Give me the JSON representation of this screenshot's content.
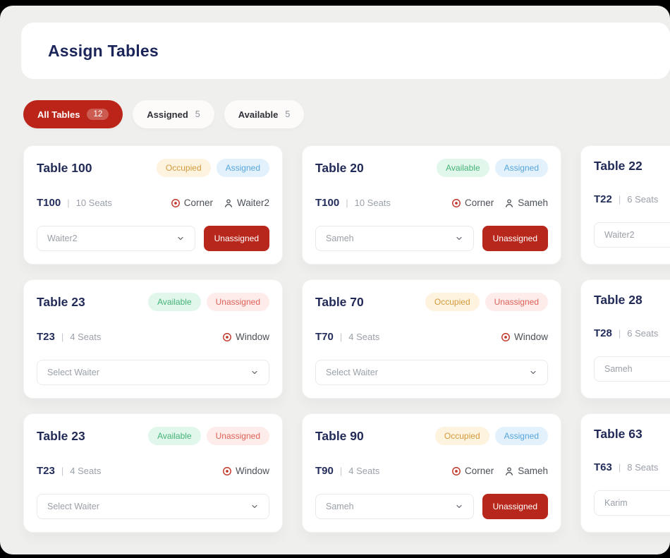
{
  "header": {
    "title": "Assign Tables"
  },
  "filters": [
    {
      "label": "All Tables",
      "count": "12",
      "active": true
    },
    {
      "label": "Assigned",
      "count": "5",
      "active": false
    },
    {
      "label": "Available",
      "count": "5",
      "active": false
    }
  ],
  "misc": {
    "separator": "|"
  },
  "colors": {
    "primary_red": "#bb2418",
    "navy": "#1b2559",
    "occupied_badge": "#d39a3c",
    "available_badge": "#43b377",
    "assigned_badge": "#57a5da",
    "unassigned_badge": "#df6058",
    "page_background": "#eff0ee"
  },
  "cards": [
    {
      "title": "Table 100",
      "badges": [
        {
          "label": "Occupied",
          "type": "occupied"
        },
        {
          "label": "Assigned",
          "type": "assigned"
        }
      ],
      "code": "T100",
      "seats": "10 Seats",
      "location": "Corner",
      "waiter": "Waiter2",
      "select_value": "Waiter2",
      "unassign_label": "Unassigned"
    },
    {
      "title": "Table 20",
      "badges": [
        {
          "label": "Available",
          "type": "available"
        },
        {
          "label": "Assigned",
          "type": "assigned"
        }
      ],
      "code": "T100",
      "seats": "10 Seats",
      "location": "Corner",
      "waiter": "Sameh",
      "select_value": "Sameh",
      "unassign_label": "Unassigned"
    },
    {
      "title": "Table 22",
      "badges": [],
      "code": "T22",
      "seats": "6 Seats",
      "location": null,
      "waiter": null,
      "select_value": "Waiter2",
      "unassign_label": null
    },
    {
      "title": "Table 23",
      "badges": [
        {
          "label": "Available",
          "type": "available"
        },
        {
          "label": "Unassigned",
          "type": "unassigned"
        }
      ],
      "code": "T23",
      "seats": "4 Seats",
      "location": "Window",
      "waiter": null,
      "select_value": "Select Waiter",
      "unassign_label": null
    },
    {
      "title": "Table 70",
      "badges": [
        {
          "label": "Occupied",
          "type": "occupied"
        },
        {
          "label": "Unassigned",
          "type": "unassigned"
        }
      ],
      "code": "T70",
      "seats": "4 Seats",
      "location": "Window",
      "waiter": null,
      "select_value": "Select Waiter",
      "unassign_label": null
    },
    {
      "title": "Table 28",
      "badges": [],
      "code": "T28",
      "seats": "6 Seats",
      "location": null,
      "waiter": null,
      "select_value": "Sameh",
      "unassign_label": null
    },
    {
      "title": "Table 23",
      "badges": [
        {
          "label": "Available",
          "type": "available"
        },
        {
          "label": "Unassigned",
          "type": "unassigned"
        }
      ],
      "code": "T23",
      "seats": "4 Seats",
      "location": "Window",
      "waiter": null,
      "select_value": "Select Waiter",
      "unassign_label": null
    },
    {
      "title": "Table 90",
      "badges": [
        {
          "label": "Occupied",
          "type": "occupied"
        },
        {
          "label": "Assigned",
          "type": "assigned"
        }
      ],
      "code": "T90",
      "seats": "4 Seats",
      "location": "Corner",
      "waiter": "Sameh",
      "select_value": "Sameh",
      "unassign_label": "Unassigned"
    },
    {
      "title": "Table 63",
      "badges": [],
      "code": "T63",
      "seats": "8 Seats",
      "location": null,
      "waiter": null,
      "select_value": "Karim",
      "unassign_label": null
    }
  ]
}
